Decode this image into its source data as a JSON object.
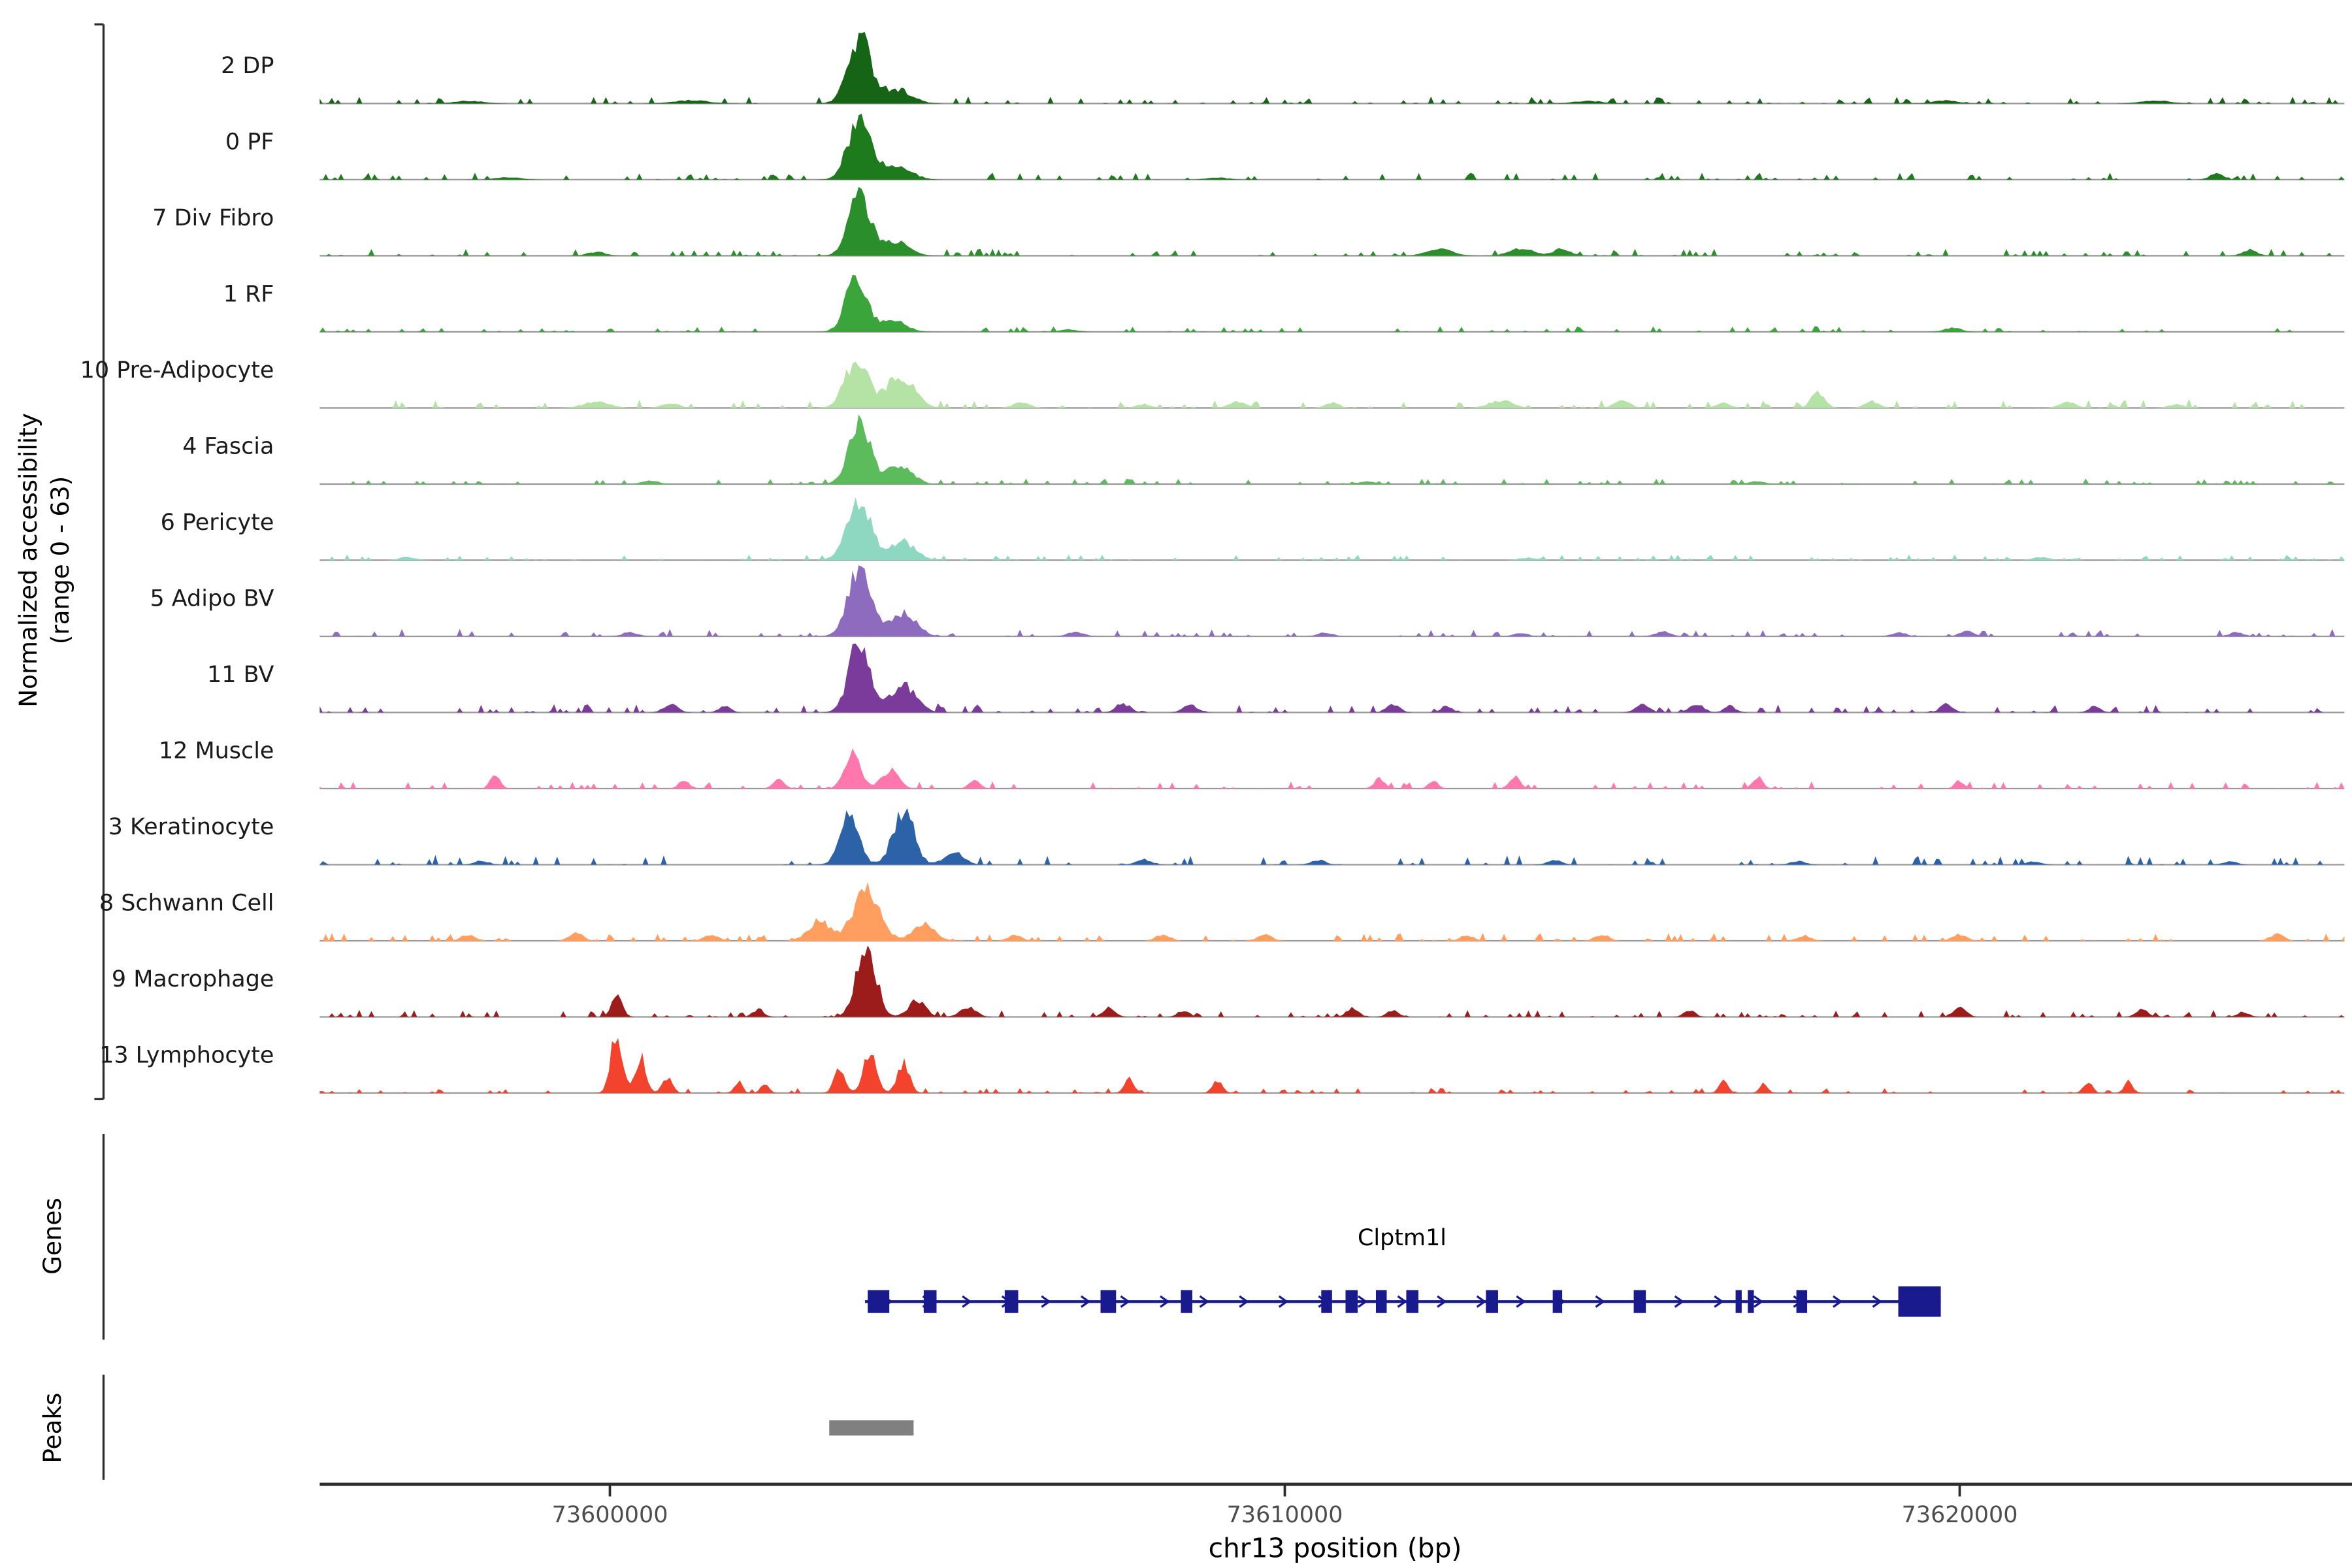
{
  "y_axis": {
    "line1": "Normalized accessibility",
    "line2": "(range 0 - 63)"
  },
  "sections": {
    "genes": "Genes",
    "peaks": "Peaks"
  },
  "x_axis": {
    "title": "chr13 position (bp)",
    "ticks": [
      {
        "bp": 73600000,
        "label": "73600000"
      },
      {
        "bp": 73610000,
        "label": "73610000"
      },
      {
        "bp": 73620000,
        "label": "73620000"
      }
    ]
  },
  "chart_data": {
    "type": "area",
    "title": "",
    "xlabel": "chr13 position (bp)",
    "ylabel": "Normalized accessibility (range 0 - 63)",
    "x_range_bp": [
      73595700,
      73625700
    ],
    "signal_range": [
      0,
      63
    ],
    "tracks": [
      {
        "name": "2 DP",
        "color": "#166416",
        "noise": 0.05,
        "bumps": [
          [
            73603700,
            1.0,
            400
          ],
          [
            73604250,
            0.22,
            500
          ],
          [
            73601200,
            0.05,
            600
          ],
          [
            73597900,
            0.04,
            500
          ],
          [
            73614500,
            0.04,
            500
          ],
          [
            73619800,
            0.05,
            400
          ],
          [
            73622900,
            0.05,
            500
          ]
        ]
      },
      {
        "name": "0 PF",
        "color": "#1d7a1d",
        "noise": 0.05,
        "bumps": [
          [
            73603700,
            0.95,
            400
          ],
          [
            73604250,
            0.2,
            500
          ],
          [
            73609000,
            0.03,
            400
          ],
          [
            73623800,
            0.1,
            220
          ],
          [
            73598500,
            0.04,
            400
          ]
        ]
      },
      {
        "name": "7 Div Fibro",
        "color": "#2a8f2a",
        "noise": 0.05,
        "bumps": [
          [
            73603700,
            0.92,
            380
          ],
          [
            73604250,
            0.22,
            450
          ],
          [
            73599800,
            0.06,
            300
          ],
          [
            73612300,
            0.1,
            450
          ],
          [
            73613500,
            0.12,
            400
          ],
          [
            73614100,
            0.1,
            300
          ],
          [
            73624300,
            0.09,
            250
          ]
        ]
      },
      {
        "name": "1 RF",
        "color": "#3aa53a",
        "noise": 0.04,
        "bumps": [
          [
            73603650,
            0.85,
            360
          ],
          [
            73604200,
            0.18,
            450
          ],
          [
            73619900,
            0.06,
            300
          ],
          [
            73606800,
            0.04,
            300
          ]
        ]
      },
      {
        "name": "10 Pre-Adipocyte",
        "color": "#b5e3a5",
        "noise": 0.06,
        "bumps": [
          [
            73603650,
            0.72,
            400
          ],
          [
            73604300,
            0.5,
            480
          ],
          [
            73599800,
            0.1,
            450
          ],
          [
            73600900,
            0.08,
            300
          ],
          [
            73606100,
            0.08,
            300
          ],
          [
            73607900,
            0.06,
            250
          ],
          [
            73609300,
            0.1,
            300
          ],
          [
            73610700,
            0.08,
            250
          ],
          [
            73613200,
            0.12,
            400
          ],
          [
            73615000,
            0.1,
            300
          ],
          [
            73616500,
            0.08,
            250
          ],
          [
            73617900,
            0.24,
            240
          ],
          [
            73618700,
            0.1,
            250
          ],
          [
            73621600,
            0.09,
            280
          ],
          [
            73623200,
            0.06,
            250
          ]
        ]
      },
      {
        "name": "4 Fascia",
        "color": "#5cbc5c",
        "noise": 0.04,
        "bumps": [
          [
            73603700,
            0.9,
            380
          ],
          [
            73604300,
            0.3,
            420
          ],
          [
            73600600,
            0.05,
            300
          ],
          [
            73611200,
            0.04,
            300
          ],
          [
            73617000,
            0.04,
            300
          ]
        ]
      },
      {
        "name": "6 Pericyte",
        "color": "#8ed7c0",
        "noise": 0.04,
        "bumps": [
          [
            73603700,
            0.85,
            430
          ],
          [
            73604350,
            0.28,
            420
          ],
          [
            73597000,
            0.05,
            280
          ],
          [
            73613600,
            0.04,
            280
          ],
          [
            73621200,
            0.05,
            280
          ]
        ]
      },
      {
        "name": "5 Adipo BV",
        "color": "#8d6bbf",
        "noise": 0.055,
        "bumps": [
          [
            73603700,
            1.0,
            400
          ],
          [
            73604350,
            0.35,
            450
          ],
          [
            73600300,
            0.06,
            280
          ],
          [
            73606900,
            0.07,
            280
          ],
          [
            73610600,
            0.06,
            250
          ],
          [
            73613500,
            0.05,
            250
          ],
          [
            73615600,
            0.07,
            280
          ],
          [
            73619100,
            0.06,
            250
          ],
          [
            73620100,
            0.08,
            250
          ],
          [
            73624100,
            0.06,
            250
          ]
        ]
      },
      {
        "name": "11 BV",
        "color": "#7a3b9b",
        "noise": 0.06,
        "bumps": [
          [
            73603700,
            1.1,
            370
          ],
          [
            73604350,
            0.4,
            450
          ],
          [
            73600900,
            0.13,
            240
          ],
          [
            73601700,
            0.1,
            200
          ],
          [
            73607600,
            0.14,
            250
          ],
          [
            73608600,
            0.12,
            240
          ],
          [
            73611600,
            0.13,
            220
          ],
          [
            73612400,
            0.1,
            200
          ],
          [
            73615300,
            0.12,
            240
          ],
          [
            73616100,
            0.14,
            240
          ],
          [
            73616600,
            0.1,
            200
          ],
          [
            73619800,
            0.13,
            220
          ],
          [
            73622000,
            0.1,
            200
          ]
        ]
      },
      {
        "name": "12 Muscle",
        "color": "#ff77ad",
        "noise": 0.05,
        "bumps": [
          [
            73603600,
            0.55,
            280
          ],
          [
            73604150,
            0.28,
            300
          ],
          [
            73598300,
            0.2,
            170
          ],
          [
            73601100,
            0.12,
            190
          ],
          [
            73602500,
            0.15,
            190
          ],
          [
            73605400,
            0.12,
            190
          ],
          [
            73611400,
            0.15,
            190
          ],
          [
            73612200,
            0.12,
            170
          ],
          [
            73613400,
            0.2,
            180
          ],
          [
            73617000,
            0.18,
            180
          ],
          [
            73620000,
            0.12,
            170
          ]
        ]
      },
      {
        "name": "3 Keratinocyte",
        "color": "#2c63a8",
        "noise": 0.07,
        "bumps": [
          [
            73603550,
            0.72,
            330
          ],
          [
            73604350,
            0.85,
            360
          ],
          [
            73605100,
            0.22,
            320
          ],
          [
            73598100,
            0.06,
            250
          ],
          [
            73607900,
            0.08,
            250
          ],
          [
            73610500,
            0.07,
            250
          ],
          [
            73614000,
            0.07,
            250
          ],
          [
            73617600,
            0.06,
            250
          ],
          [
            73621100,
            0.05,
            250
          ],
          [
            73624000,
            0.05,
            250
          ]
        ]
      },
      {
        "name": "8 Schwann Cell",
        "color": "#ff9e5e",
        "noise": 0.055,
        "bumps": [
          [
            73603800,
            0.75,
            460
          ],
          [
            73603100,
            0.3,
            380
          ],
          [
            73604650,
            0.26,
            380
          ],
          [
            73597900,
            0.1,
            240
          ],
          [
            73599500,
            0.13,
            240
          ],
          [
            73601500,
            0.1,
            240
          ],
          [
            73606000,
            0.08,
            240
          ],
          [
            73608200,
            0.1,
            240
          ],
          [
            73609700,
            0.1,
            240
          ],
          [
            73612700,
            0.08,
            240
          ],
          [
            73614700,
            0.1,
            240
          ],
          [
            73617700,
            0.08,
            240
          ],
          [
            73620000,
            0.1,
            240
          ],
          [
            73624700,
            0.1,
            240
          ]
        ]
      },
      {
        "name": "9 Macrophage",
        "color": "#9c1b1b",
        "noise": 0.05,
        "bumps": [
          [
            73603800,
            1.08,
            340
          ],
          [
            73604550,
            0.25,
            300
          ],
          [
            73605300,
            0.15,
            280
          ],
          [
            73600100,
            0.32,
            190
          ],
          [
            73602200,
            0.12,
            190
          ],
          [
            73607400,
            0.14,
            210
          ],
          [
            73608500,
            0.1,
            200
          ],
          [
            73611000,
            0.13,
            210
          ],
          [
            73611600,
            0.1,
            200
          ],
          [
            73616000,
            0.1,
            200
          ],
          [
            73620000,
            0.18,
            210
          ],
          [
            73622700,
            0.12,
            200
          ],
          [
            73624200,
            0.08,
            200
          ]
        ]
      },
      {
        "name": "13 Lymphocyte",
        "color": "#f4432c",
        "noise": 0.035,
        "bumps": [
          [
            73600100,
            0.95,
            200
          ],
          [
            73600450,
            0.55,
            190
          ],
          [
            73600850,
            0.25,
            170
          ],
          [
            73601900,
            0.18,
            140
          ],
          [
            73602300,
            0.15,
            140
          ],
          [
            73603400,
            0.35,
            190
          ],
          [
            73603850,
            0.58,
            230
          ],
          [
            73604350,
            0.45,
            210
          ],
          [
            73607700,
            0.22,
            170
          ],
          [
            73609000,
            0.18,
            170
          ],
          [
            73616500,
            0.18,
            150
          ],
          [
            73617100,
            0.14,
            140
          ],
          [
            73621900,
            0.18,
            150
          ],
          [
            73622500,
            0.18,
            150
          ]
        ]
      }
    ],
    "gene": {
      "name": "Clptm1l",
      "color": "#1a1a8f",
      "strand": "+",
      "start": 73603780,
      "end": 73619720,
      "exons": [
        [
          73603820,
          73604140
        ],
        [
          73604650,
          73604840
        ],
        [
          73605850,
          73606050
        ],
        [
          73607270,
          73607500
        ],
        [
          73608460,
          73608630
        ],
        [
          73610540,
          73610700
        ],
        [
          73610900,
          73611080
        ],
        [
          73611350,
          73611510
        ],
        [
          73611800,
          73611980
        ],
        [
          73612980,
          73613160
        ],
        [
          73613970,
          73614110
        ],
        [
          73615170,
          73615350
        ],
        [
          73616680,
          73616770
        ],
        [
          73616860,
          73616950
        ],
        [
          73617580,
          73617740
        ],
        [
          73619090,
          73619720
        ]
      ]
    },
    "peak_regions": [
      [
        73603250,
        73604500
      ]
    ],
    "peak_color": "#808080"
  }
}
